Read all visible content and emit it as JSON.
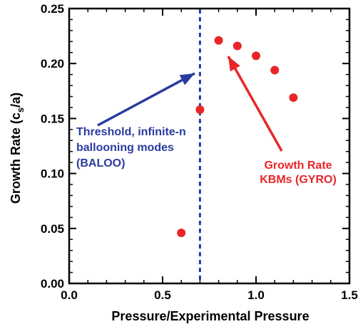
{
  "chart_data": {
    "type": "scatter",
    "title": "",
    "xlabel": "Pressure/Experimental Pressure",
    "ylabel": "Growth Rate (c",
    "ylabel_sub": "s",
    "ylabel_end": "/a)",
    "xlim": [
      0.0,
      1.5
    ],
    "ylim": [
      0.0,
      0.25
    ],
    "x_ticks": [
      "0.0",
      "0.5",
      "1.0",
      "1.5"
    ],
    "y_ticks": [
      "0.00",
      "0.05",
      "0.10",
      "0.15",
      "0.20",
      "0.25"
    ],
    "grid": false,
    "series": [
      {
        "name": "Growth Rate KBMs (GYRO)",
        "color": "#e8262a",
        "x": [
          0.6,
          0.7,
          0.8,
          0.9,
          1.0,
          1.1,
          1.2
        ],
        "y": [
          0.046,
          0.158,
          0.221,
          0.216,
          0.207,
          0.194,
          0.169
        ]
      }
    ],
    "threshold": {
      "x": 0.7,
      "color": "#2a3b9e"
    },
    "annotations": [
      {
        "lines": [
          "Threshold, infinite-n",
          "ballooning modes",
          "(BALOO)"
        ],
        "color": "#2a3b9e"
      },
      {
        "lines": [
          "Growth Rate",
          "KBMs (GYRO)"
        ],
        "color": "#e8262a"
      }
    ]
  }
}
